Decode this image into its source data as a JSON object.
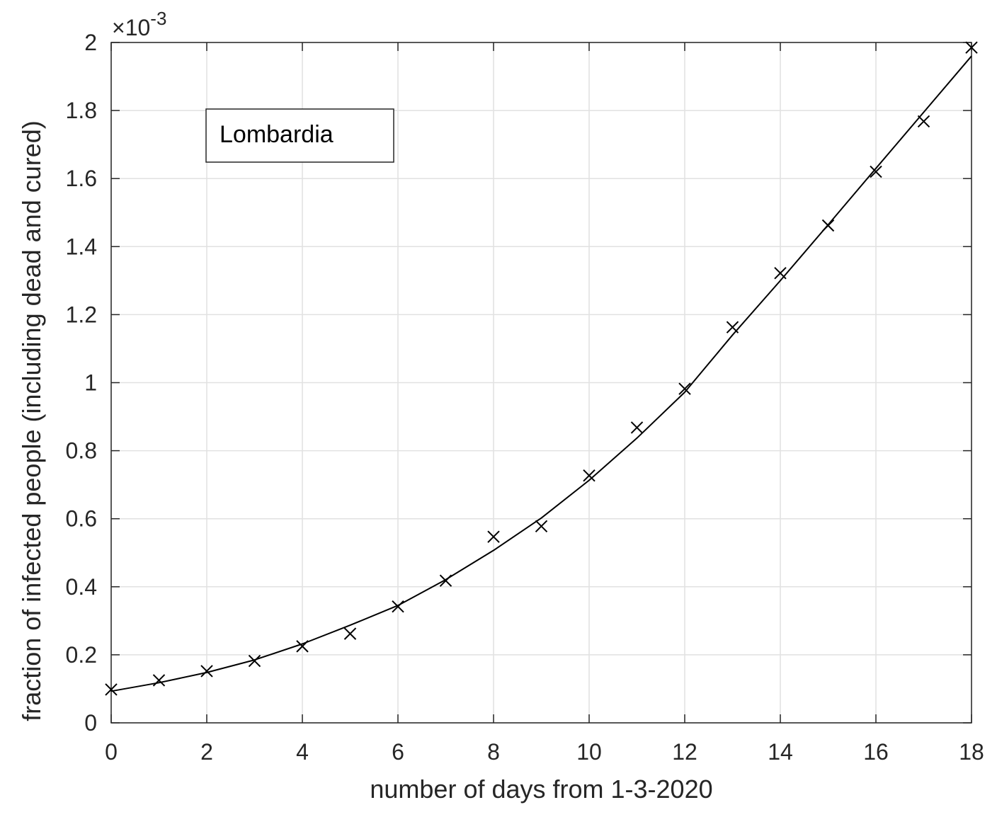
{
  "chart_data": {
    "type": "line",
    "title": "",
    "xlabel": "number of days from 1-3-2020",
    "ylabel": "fraction of infected people (including dead and cured)",
    "xlim": [
      0,
      18
    ],
    "ylim": [
      0,
      2
    ],
    "x_ticks": [
      0,
      2,
      4,
      6,
      8,
      10,
      12,
      14,
      16,
      18
    ],
    "y_ticks": [
      0,
      0.2,
      0.4,
      0.6,
      0.8,
      1,
      1.2,
      1.4,
      1.6,
      1.8,
      2
    ],
    "x_tick_labels": [
      "0",
      "2",
      "4",
      "6",
      "8",
      "10",
      "12",
      "14",
      "16",
      "18"
    ],
    "y_tick_labels": [
      "0",
      "0.2",
      "0.4",
      "0.6",
      "0.8",
      "1",
      "1.2",
      "1.4",
      "1.6",
      "1.8",
      "2"
    ],
    "y_multiplier": {
      "base": "10",
      "exponent": "-3",
      "prefix": "×"
    },
    "grid": true,
    "legend": {
      "entries": [
        "Lombardia"
      ],
      "placement": "top-left"
    },
    "series": [
      {
        "style": "markers-x",
        "color": "#000000",
        "x": [
          0,
          1,
          2,
          3,
          4,
          5,
          6,
          7,
          8,
          9,
          10,
          11,
          12,
          13,
          14,
          15,
          16,
          17,
          18
        ],
        "y": [
          0.098,
          0.125,
          0.152,
          0.182,
          0.225,
          0.262,
          0.342,
          0.418,
          0.547,
          0.578,
          0.727,
          0.868,
          0.982,
          1.163,
          1.322,
          1.462,
          1.62,
          1.768,
          1.985
        ]
      },
      {
        "style": "line",
        "color": "#000000",
        "x": [
          0,
          1,
          2,
          3,
          4,
          5,
          6,
          7,
          8,
          9,
          10,
          11,
          12,
          13,
          14,
          15,
          16,
          17,
          18
        ],
        "y": [
          0.093,
          0.118,
          0.148,
          0.185,
          0.232,
          0.287,
          0.345,
          0.421,
          0.507,
          0.602,
          0.713,
          0.837,
          0.972,
          1.14,
          1.3,
          1.464,
          1.63,
          1.795,
          1.96
        ]
      }
    ]
  },
  "colors": {
    "axis": "#262626",
    "grid": "#e1e1e1",
    "series": "#000000"
  }
}
